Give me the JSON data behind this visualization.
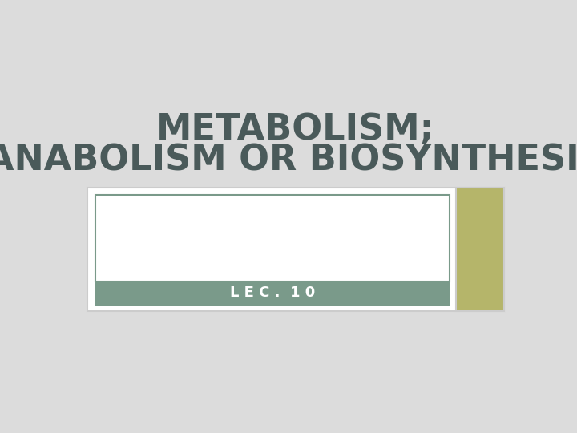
{
  "bg_color": "#dcdcdc",
  "title_line1": "METABOLISM;",
  "title_line2": "ANABOLISM OR BIOSYNTHESIS",
  "title_color": "#4a5a5a",
  "title_fontsize": 32,
  "title_fontweight": "bold",
  "lec_text": "L E C .  1 0",
  "lec_text_color": "#ffffff",
  "lec_bar_color": "#7a9a8a",
  "lec_text_fontsize": 13,
  "outer_box_color": "#ffffff",
  "outer_box_border": "#cccccc",
  "inner_box_color": "#ffffff",
  "inner_box_border": "#7a9a8a",
  "olive_box_color": "#b5b56a",
  "olive_box_border": "#cccccc"
}
